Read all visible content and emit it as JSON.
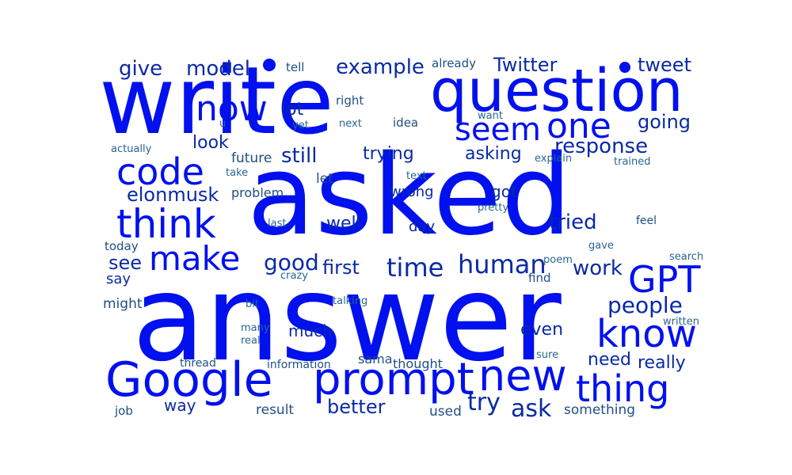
{
  "colors": {
    "primary": "#0010ee",
    "mid": "#0a2aa5",
    "muted": "#1f4e85",
    "dim": "#2a6690"
  },
  "words": [
    {
      "text": "answer",
      "tone": "primary"
    },
    {
      "text": "asked",
      "tone": "primary"
    },
    {
      "text": "write",
      "tone": "primary"
    },
    {
      "text": "question",
      "tone": "primary"
    },
    {
      "text": "Google",
      "tone": "primary"
    },
    {
      "text": "prompt",
      "tone": "primary"
    },
    {
      "text": "new",
      "tone": "primary"
    },
    {
      "text": "thing",
      "tone": "primary"
    },
    {
      "text": "know",
      "tone": "primary"
    },
    {
      "text": "think",
      "tone": "primary"
    },
    {
      "text": "code",
      "tone": "primary"
    },
    {
      "text": "make",
      "tone": "primary"
    },
    {
      "text": "one",
      "tone": "primary"
    },
    {
      "text": "seem",
      "tone": "primary"
    },
    {
      "text": "GPT",
      "tone": "primary"
    },
    {
      "text": "now",
      "tone": "primary"
    },
    {
      "text": "people",
      "tone": "mid"
    },
    {
      "text": "human",
      "tone": "mid"
    },
    {
      "text": "time",
      "tone": "mid"
    },
    {
      "text": "response",
      "tone": "mid"
    },
    {
      "text": "good",
      "tone": "mid"
    },
    {
      "text": "still",
      "tone": "mid"
    },
    {
      "text": "elonmusk",
      "tone": "mid"
    },
    {
      "text": "give",
      "tone": "mid"
    },
    {
      "text": "model",
      "tone": "mid"
    },
    {
      "text": "example",
      "tone": "mid"
    },
    {
      "text": "Twitter",
      "tone": "mid"
    },
    {
      "text": "tweet",
      "tone": "mid"
    },
    {
      "text": "going",
      "tone": "mid"
    },
    {
      "text": "ask",
      "tone": "mid"
    },
    {
      "text": "try",
      "tone": "mid"
    },
    {
      "text": "better",
      "tone": "mid"
    },
    {
      "text": "work",
      "tone": "mid"
    },
    {
      "text": "tried",
      "tone": "mid"
    },
    {
      "text": "first",
      "tone": "mid"
    },
    {
      "text": "see",
      "tone": "mid"
    },
    {
      "text": "lot",
      "tone": "mid"
    },
    {
      "text": "look",
      "tone": "mid"
    },
    {
      "text": "asking",
      "tone": "mid"
    },
    {
      "text": "trying",
      "tone": "mid"
    },
    {
      "text": "well",
      "tone": "mid"
    },
    {
      "text": "got",
      "tone": "mid"
    },
    {
      "text": "really",
      "tone": "mid"
    },
    {
      "text": "need",
      "tone": "mid"
    },
    {
      "text": "even",
      "tone": "mid"
    },
    {
      "text": "way",
      "tone": "mid"
    },
    {
      "text": "much",
      "tone": "mid"
    },
    {
      "text": "wrong",
      "tone": "mid"
    },
    {
      "text": "say",
      "tone": "mid"
    },
    {
      "text": "day",
      "tone": "mid"
    },
    {
      "text": "future",
      "tone": "muted"
    },
    {
      "text": "let",
      "tone": "muted"
    },
    {
      "text": "problem",
      "tone": "muted"
    },
    {
      "text": "result",
      "tone": "muted"
    },
    {
      "text": "used",
      "tone": "muted"
    },
    {
      "text": "something",
      "tone": "muted"
    },
    {
      "text": "sama",
      "tone": "muted"
    },
    {
      "text": "thought",
      "tone": "muted"
    },
    {
      "text": "might",
      "tone": "muted"
    },
    {
      "text": "today",
      "tone": "muted"
    },
    {
      "text": "find",
      "tone": "muted"
    },
    {
      "text": "tell",
      "tone": "muted"
    },
    {
      "text": "already",
      "tone": "muted"
    },
    {
      "text": "right",
      "tone": "muted"
    },
    {
      "text": "idea",
      "tone": "muted"
    },
    {
      "text": "job",
      "tone": "muted"
    },
    {
      "text": "thread",
      "tone": "muted"
    },
    {
      "text": "information",
      "tone": "muted"
    },
    {
      "text": "feel",
      "tone": "muted"
    },
    {
      "text": "explain",
      "tone": "dim"
    },
    {
      "text": "trained",
      "tone": "dim"
    },
    {
      "text": "actually",
      "tone": "dim"
    },
    {
      "text": "take",
      "tone": "dim"
    },
    {
      "text": "text",
      "tone": "dim"
    },
    {
      "text": "pretty",
      "tone": "dim"
    },
    {
      "text": "last",
      "tone": "dim"
    },
    {
      "text": "want",
      "tone": "dim"
    },
    {
      "text": "next",
      "tone": "dim"
    },
    {
      "text": "yet",
      "tone": "dim"
    },
    {
      "text": "u",
      "tone": "dim"
    },
    {
      "text": "poem",
      "tone": "dim"
    },
    {
      "text": "gave",
      "tone": "dim"
    },
    {
      "text": "search",
      "tone": "dim"
    },
    {
      "text": "crazy",
      "tone": "dim"
    },
    {
      "text": "talking",
      "tone": "dim"
    },
    {
      "text": "bit",
      "tone": "dim"
    },
    {
      "text": "many",
      "tone": "dim"
    },
    {
      "text": "real",
      "tone": "dim"
    },
    {
      "text": "sure",
      "tone": "dim"
    },
    {
      "text": "written",
      "tone": "dim"
    }
  ]
}
